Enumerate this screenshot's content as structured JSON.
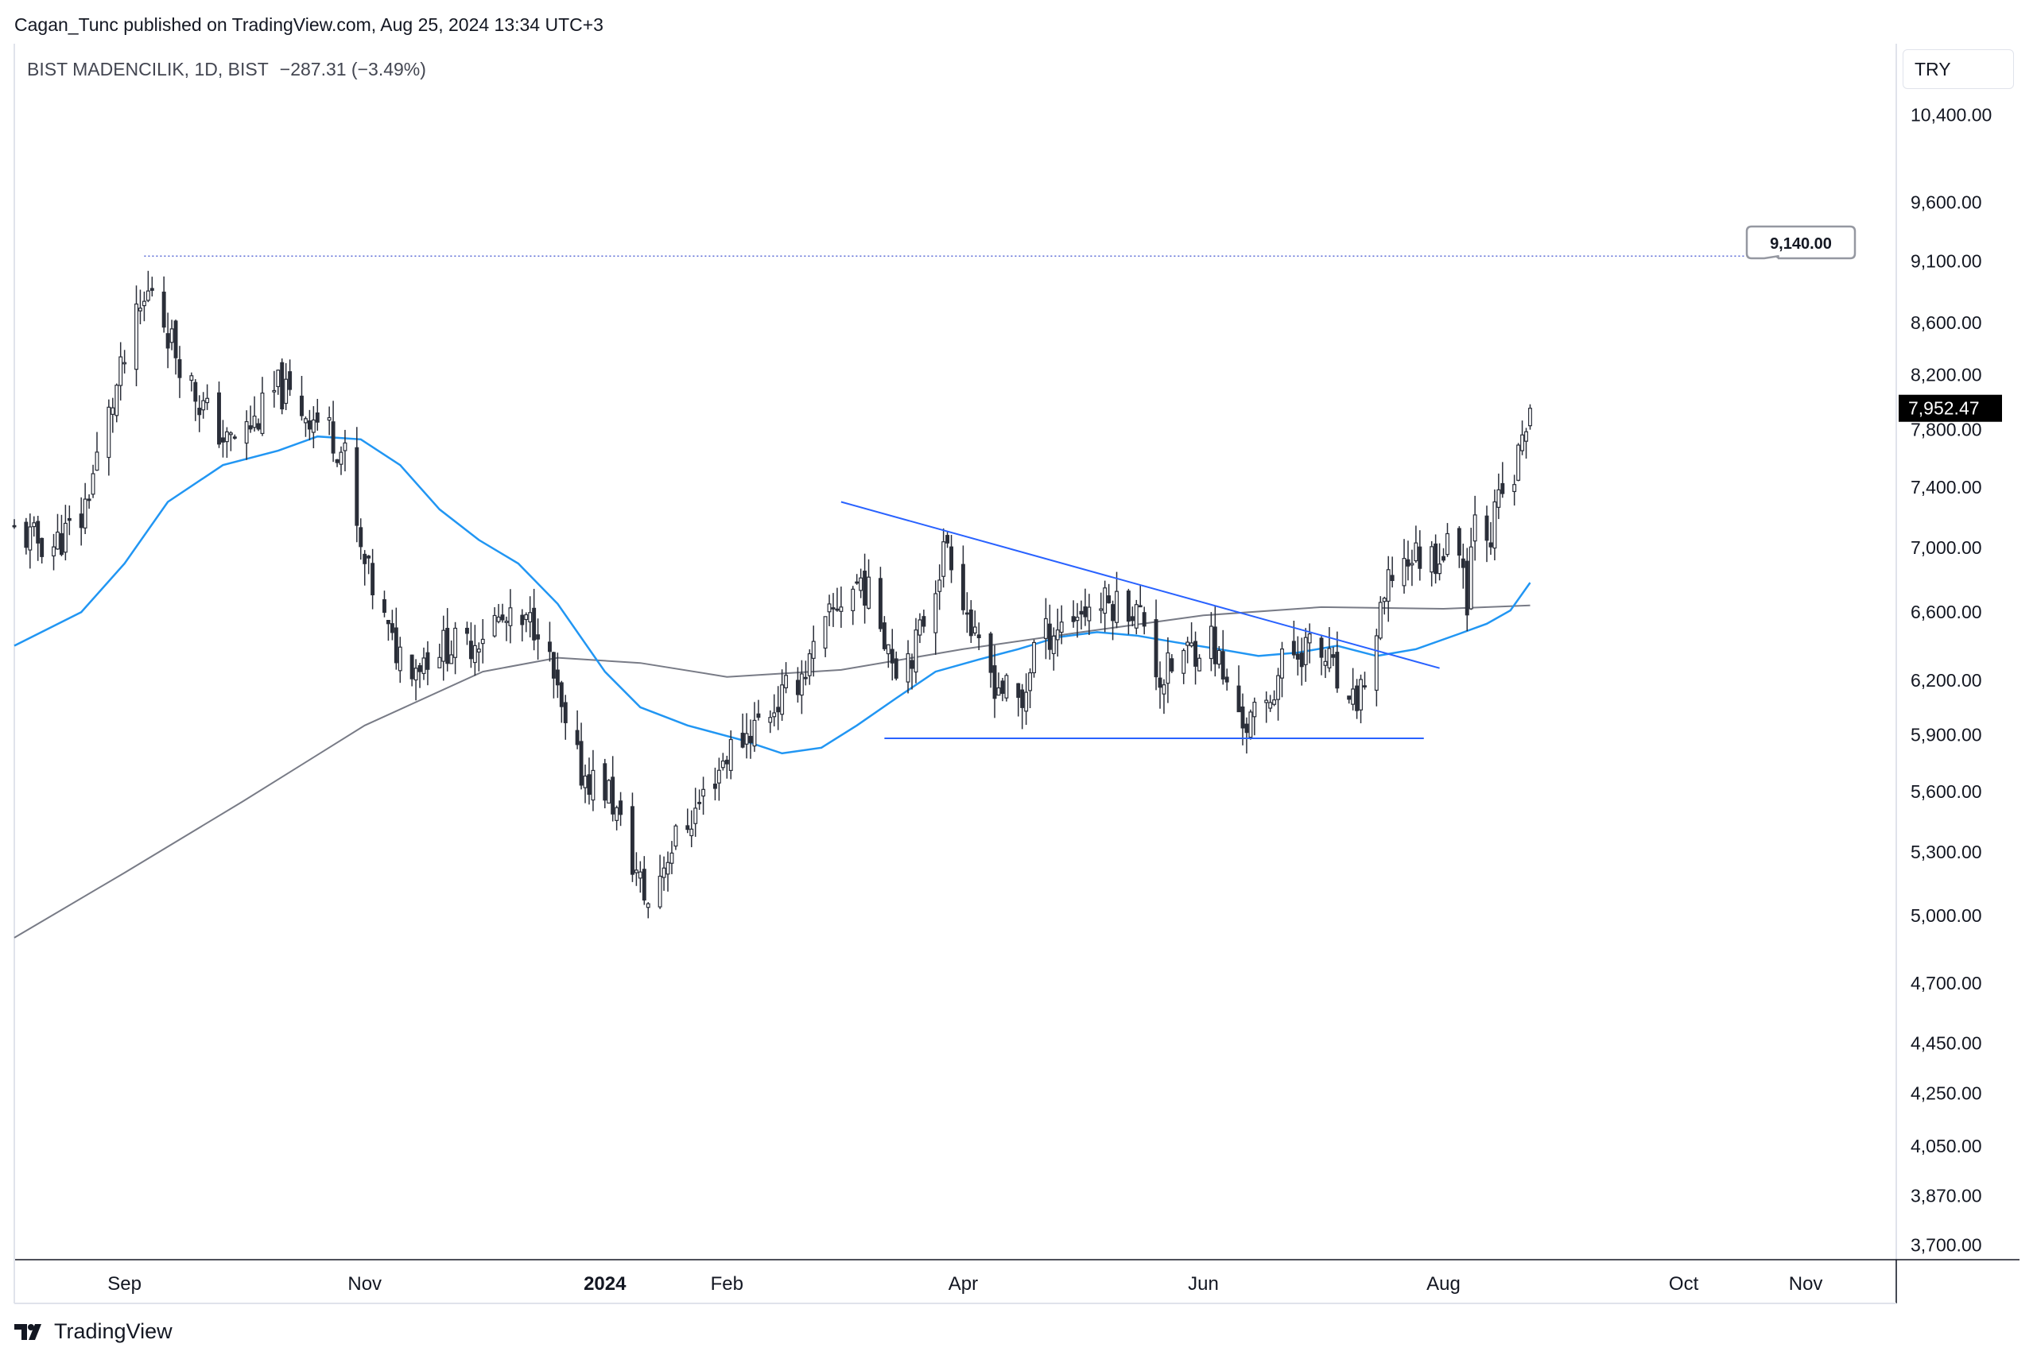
{
  "header": {
    "publisher": "Cagan_Tunc published on TradingView.com, Aug 25, 2024 13:34 UTC+3",
    "symbol": "BIST MADENCILIK, 1D, BIST",
    "change": "−287.31 (−3.49%)"
  },
  "currency_button": "TRY",
  "footer": {
    "brand": "TradingView"
  },
  "chart_data": {
    "type": "candlestick",
    "y_scale": "log",
    "ylim": [
      3650,
      11100
    ],
    "y_ticks": [
      10400,
      9600,
      9100,
      8600,
      8200,
      7800,
      7400,
      7000,
      6600,
      6200,
      5900,
      5600,
      5300,
      5000,
      4700,
      4450,
      4250,
      4050,
      3870,
      3700
    ],
    "y_tick_labels": [
      "10,400.00",
      "9,600.00",
      "9,100.00",
      "8,600.00",
      "8,200.00",
      "7,800.00",
      "7,400.00",
      "7,000.00",
      "6,600.00",
      "6,200.00",
      "5,900.00",
      "5,600.00",
      "5,300.00",
      "5,000.00",
      "4,700.00",
      "4,450.00",
      "4,250.00",
      "4,050.00",
      "3,870.00",
      "3,700.00"
    ],
    "x_labels": [
      {
        "text": "Sep",
        "date": "2023-09-01",
        "bold": false
      },
      {
        "text": "Nov",
        "date": "2023-11-01",
        "bold": false
      },
      {
        "text": "2024",
        "date": "2024-01-01",
        "bold": true
      },
      {
        "text": "Feb",
        "date": "2024-02-01",
        "bold": false
      },
      {
        "text": "Apr",
        "date": "2024-04-01",
        "bold": false
      },
      {
        "text": "Jun",
        "date": "2024-06-01",
        "bold": false
      },
      {
        "text": "Aug",
        "date": "2024-08-01",
        "bold": false
      },
      {
        "text": "Oct",
        "date": "2024-10-01",
        "bold": false
      },
      {
        "text": "Nov",
        "date": "2024-11-01",
        "bold": false
      }
    ],
    "x_range": [
      "2023-08-04",
      "2024-11-24"
    ],
    "last_price": 7952.47,
    "last_price_label": "7,952.47",
    "price_path": [
      [
        "2023-08-04",
        7100
      ],
      [
        "2023-08-09",
        7050
      ],
      [
        "2023-08-14",
        7020
      ],
      [
        "2023-08-21",
        7180
      ],
      [
        "2023-08-28",
        7900
      ],
      [
        "2023-09-04",
        8600
      ],
      [
        "2023-09-08",
        8900
      ],
      [
        "2023-09-13",
        8450
      ],
      [
        "2023-09-20",
        8000
      ],
      [
        "2023-09-27",
        7700
      ],
      [
        "2023-10-04",
        7850
      ],
      [
        "2023-10-10",
        8100
      ],
      [
        "2023-10-16",
        7950
      ],
      [
        "2023-10-23",
        7800
      ],
      [
        "2023-10-27",
        7600
      ],
      [
        "2023-10-31",
        6950
      ],
      [
        "2023-11-03",
        6750
      ],
      [
        "2023-11-08",
        6400
      ],
      [
        "2023-11-14",
        6300
      ],
      [
        "2023-11-20",
        6400
      ],
      [
        "2023-11-27",
        6400
      ],
      [
        "2023-12-04",
        6550
      ],
      [
        "2023-12-11",
        6500
      ],
      [
        "2023-12-15",
        6550
      ],
      [
        "2023-12-19",
        6200
      ],
      [
        "2023-12-22",
        5900
      ],
      [
        "2023-12-26",
        5700
      ],
      [
        "2024-01-02",
        5600
      ],
      [
        "2024-01-08",
        5250
      ],
      [
        "2024-01-12",
        5050
      ],
      [
        "2024-01-17",
        5300
      ],
      [
        "2024-01-24",
        5500
      ],
      [
        "2024-02-01",
        5800
      ],
      [
        "2024-02-08",
        5950
      ],
      [
        "2024-02-15",
        6100
      ],
      [
        "2024-02-22",
        6300
      ],
      [
        "2024-02-29",
        6650
      ],
      [
        "2024-03-06",
        6800
      ],
      [
        "2024-03-11",
        6550
      ],
      [
        "2024-03-15",
        6300
      ],
      [
        "2024-03-20",
        6400
      ],
      [
        "2024-03-25",
        6800
      ],
      [
        "2024-03-28",
        7050
      ],
      [
        "2024-04-01",
        6700
      ],
      [
        "2024-04-04",
        6400
      ],
      [
        "2024-04-09",
        6200
      ],
      [
        "2024-04-16",
        6050
      ],
      [
        "2024-04-19",
        6400
      ],
      [
        "2024-04-24",
        6500
      ],
      [
        "2024-04-30",
        6600
      ],
      [
        "2024-05-06",
        6650
      ],
      [
        "2024-05-13",
        6650
      ],
      [
        "2024-05-17",
        6550
      ],
      [
        "2024-05-21",
        6200
      ],
      [
        "2024-05-27",
        6350
      ],
      [
        "2024-06-03",
        6450
      ],
      [
        "2024-06-07",
        6150
      ],
      [
        "2024-06-12",
        5950
      ],
      [
        "2024-06-17",
        6050
      ],
      [
        "2024-06-21",
        6300
      ],
      [
        "2024-06-27",
        6400
      ],
      [
        "2024-07-03",
        6300
      ],
      [
        "2024-07-08",
        6000
      ],
      [
        "2024-07-12",
        6200
      ],
      [
        "2024-07-16",
        6550
      ],
      [
        "2024-07-19",
        6850
      ],
      [
        "2024-07-24",
        6950
      ],
      [
        "2024-07-30",
        6950
      ],
      [
        "2024-08-05",
        7050
      ],
      [
        "2024-08-07",
        6700
      ],
      [
        "2024-08-09",
        7300
      ],
      [
        "2024-08-13",
        7100
      ],
      [
        "2024-08-15",
        7300
      ],
      [
        "2024-08-19",
        7450
      ],
      [
        "2024-08-21",
        7750
      ],
      [
        "2024-08-23",
        7952
      ]
    ],
    "ma_blue": [
      [
        "2023-08-04",
        6400
      ],
      [
        "2023-08-21",
        6600
      ],
      [
        "2023-09-01",
        6900
      ],
      [
        "2023-09-12",
        7300
      ],
      [
        "2023-09-26",
        7550
      ],
      [
        "2023-10-10",
        7650
      ],
      [
        "2023-10-20",
        7750
      ],
      [
        "2023-10-31",
        7730
      ],
      [
        "2023-11-10",
        7550
      ],
      [
        "2023-11-20",
        7250
      ],
      [
        "2023-11-30",
        7050
      ],
      [
        "2023-12-10",
        6900
      ],
      [
        "2023-12-20",
        6650
      ],
      [
        "2024-01-01",
        6250
      ],
      [
        "2024-01-10",
        6050
      ],
      [
        "2024-01-22",
        5950
      ],
      [
        "2024-02-05",
        5870
      ],
      [
        "2024-02-15",
        5800
      ],
      [
        "2024-02-25",
        5830
      ],
      [
        "2024-03-05",
        5950
      ],
      [
        "2024-03-15",
        6100
      ],
      [
        "2024-03-25",
        6250
      ],
      [
        "2024-04-05",
        6320
      ],
      [
        "2024-04-15",
        6380
      ],
      [
        "2024-04-25",
        6450
      ],
      [
        "2024-05-05",
        6480
      ],
      [
        "2024-05-15",
        6460
      ],
      [
        "2024-05-25",
        6420
      ],
      [
        "2024-06-05",
        6380
      ],
      [
        "2024-06-15",
        6340
      ],
      [
        "2024-06-25",
        6360
      ],
      [
        "2024-07-05",
        6400
      ],
      [
        "2024-07-15",
        6340
      ],
      [
        "2024-07-25",
        6380
      ],
      [
        "2024-08-05",
        6470
      ],
      [
        "2024-08-12",
        6530
      ],
      [
        "2024-08-18",
        6610
      ],
      [
        "2024-08-23",
        6780
      ]
    ],
    "ma_gray": [
      [
        "2023-08-04",
        4900
      ],
      [
        "2023-09-01",
        5200
      ],
      [
        "2023-10-01",
        5550
      ],
      [
        "2023-11-01",
        5950
      ],
      [
        "2023-12-01",
        6250
      ],
      [
        "2023-12-20",
        6330
      ],
      [
        "2024-01-10",
        6300
      ],
      [
        "2024-02-01",
        6220
      ],
      [
        "2024-03-01",
        6260
      ],
      [
        "2024-04-01",
        6380
      ],
      [
        "2024-05-01",
        6480
      ],
      [
        "2024-06-01",
        6580
      ],
      [
        "2024-07-01",
        6630
      ],
      [
        "2024-08-01",
        6620
      ],
      [
        "2024-08-23",
        6640
      ]
    ],
    "trendline": [
      [
        "2024-03-01",
        7300
      ],
      [
        "2024-07-31",
        6270
      ]
    ],
    "support_line": [
      [
        "2024-03-12",
        5880
      ],
      [
        "2024-07-27",
        5880
      ]
    ],
    "dotted_level": {
      "from": "2023-09-06",
      "to": "2024-10-25",
      "value": 9140
    },
    "callout_label": "9,140.00"
  }
}
